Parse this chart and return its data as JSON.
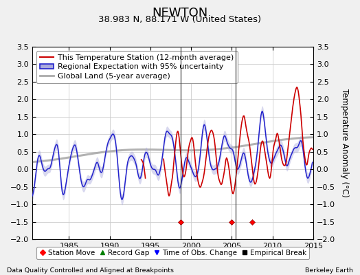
{
  "title": "NEWTON",
  "subtitle": "38.983 N, 88.171 W (United States)",
  "ylabel": "Temperature Anomaly (°C)",
  "xlabel_left": "Data Quality Controlled and Aligned at Breakpoints",
  "xlabel_right": "Berkeley Earth",
  "xlim": [
    1980.5,
    2015
  ],
  "ylim": [
    -2.0,
    3.5
  ],
  "yticks": [
    -2,
    -1.5,
    -1,
    -0.5,
    0,
    0.5,
    1,
    1.5,
    2,
    2.5,
    3,
    3.5
  ],
  "xticks": [
    1985,
    1990,
    1995,
    2000,
    2005,
    2010,
    2015
  ],
  "vertical_lines": [
    1998.7,
    2005.5
  ],
  "station_move_years": [
    1998.7,
    2005.0,
    2007.5
  ],
  "station_move_yval": -1.5,
  "bg_color": "#f0f0f0",
  "plot_bg_color": "#ffffff",
  "red_line_color": "#cc0000",
  "blue_line_color": "#2222cc",
  "blue_fill_color": "#aaaadd",
  "gray_line_color": "#aaaaaa",
  "title_fontsize": 13,
  "subtitle_fontsize": 9.5,
  "legend_fontsize": 8,
  "annotation_fontsize": 7.5
}
